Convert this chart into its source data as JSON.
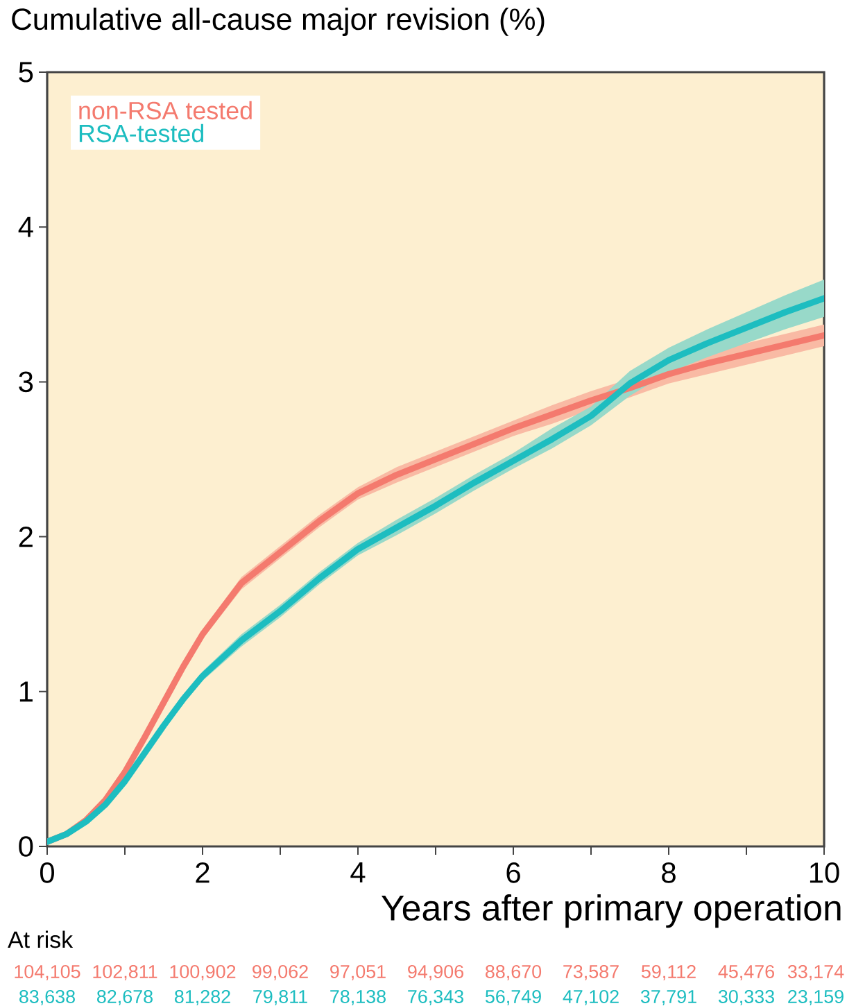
{
  "chart_data": {
    "type": "line",
    "ylabel": "Cumulative all-cause major revision (%)",
    "xlabel": "Years after primary operation",
    "x": [
      0,
      0.25,
      0.5,
      0.75,
      1,
      1.25,
      1.5,
      1.75,
      2,
      2.5,
      3,
      3.5,
      4,
      4.5,
      5,
      5.5,
      6,
      6.5,
      7,
      7.5,
      8,
      8.5,
      9,
      9.5,
      10
    ],
    "series": [
      {
        "name": "non-RSA tested",
        "color": "#f47a6e",
        "values": [
          0.03,
          0.08,
          0.17,
          0.3,
          0.48,
          0.7,
          0.93,
          1.16,
          1.37,
          1.7,
          1.9,
          2.1,
          2.28,
          2.4,
          2.5,
          2.6,
          2.7,
          2.79,
          2.88,
          2.96,
          3.05,
          3.12,
          3.18,
          3.24,
          3.3
        ],
        "lower": [
          0.01,
          0.06,
          0.15,
          0.28,
          0.46,
          0.67,
          0.9,
          1.13,
          1.34,
          1.66,
          1.86,
          2.06,
          2.24,
          2.35,
          2.45,
          2.55,
          2.65,
          2.73,
          2.82,
          2.9,
          2.99,
          3.05,
          3.11,
          3.17,
          3.23
        ],
        "upper": [
          0.05,
          0.1,
          0.19,
          0.32,
          0.5,
          0.73,
          0.96,
          1.19,
          1.4,
          1.74,
          1.94,
          2.14,
          2.32,
          2.45,
          2.55,
          2.65,
          2.75,
          2.85,
          2.94,
          3.02,
          3.11,
          3.19,
          3.25,
          3.31,
          3.37
        ]
      },
      {
        "name": "RSA-tested",
        "color": "#1dbdc0",
        "values": [
          0.03,
          0.08,
          0.16,
          0.27,
          0.42,
          0.6,
          0.78,
          0.95,
          1.1,
          1.33,
          1.52,
          1.73,
          1.92,
          2.06,
          2.2,
          2.35,
          2.49,
          2.63,
          2.78,
          2.99,
          3.14,
          3.25,
          3.35,
          3.45,
          3.54
        ],
        "lower": [
          0.01,
          0.06,
          0.14,
          0.25,
          0.4,
          0.57,
          0.75,
          0.92,
          1.07,
          1.29,
          1.48,
          1.69,
          1.88,
          2.01,
          2.15,
          2.3,
          2.44,
          2.57,
          2.72,
          2.91,
          3.06,
          3.16,
          3.25,
          3.34,
          3.42
        ],
        "upper": [
          0.05,
          0.1,
          0.18,
          0.29,
          0.44,
          0.63,
          0.81,
          0.98,
          1.13,
          1.37,
          1.56,
          1.77,
          1.96,
          2.11,
          2.25,
          2.4,
          2.54,
          2.7,
          2.84,
          3.07,
          3.22,
          3.34,
          3.45,
          3.56,
          3.66
        ]
      }
    ],
    "xlim": [
      0,
      10
    ],
    "xticks": [
      0,
      {
        "value": 1,
        "label": null
      },
      2,
      {
        "value": 3,
        "label": null
      },
      4,
      {
        "value": 5,
        "label": null
      },
      6,
      {
        "value": 7,
        "label": null
      },
      8,
      {
        "value": 9,
        "label": null
      },
      10
    ],
    "ylim": [
      0,
      5
    ],
    "yticks": [
      0,
      1,
      2,
      3,
      4,
      5
    ],
    "grid": false,
    "legend": "top left",
    "marker": "none",
    "line_style": "solid",
    "annotations": [
      "At risk",
      "104,105",
      "102,811",
      "100,902",
      "99,062",
      "97,051",
      "94,906",
      "88,670",
      "73,587",
      "59,112",
      "45,476",
      "33,174",
      "83,638",
      "82,678",
      "81,282",
      "79,811",
      "78,138",
      "76,343",
      "56,749",
      "47,102",
      "37,791",
      "30,333",
      "23,159"
    ]
  }
}
